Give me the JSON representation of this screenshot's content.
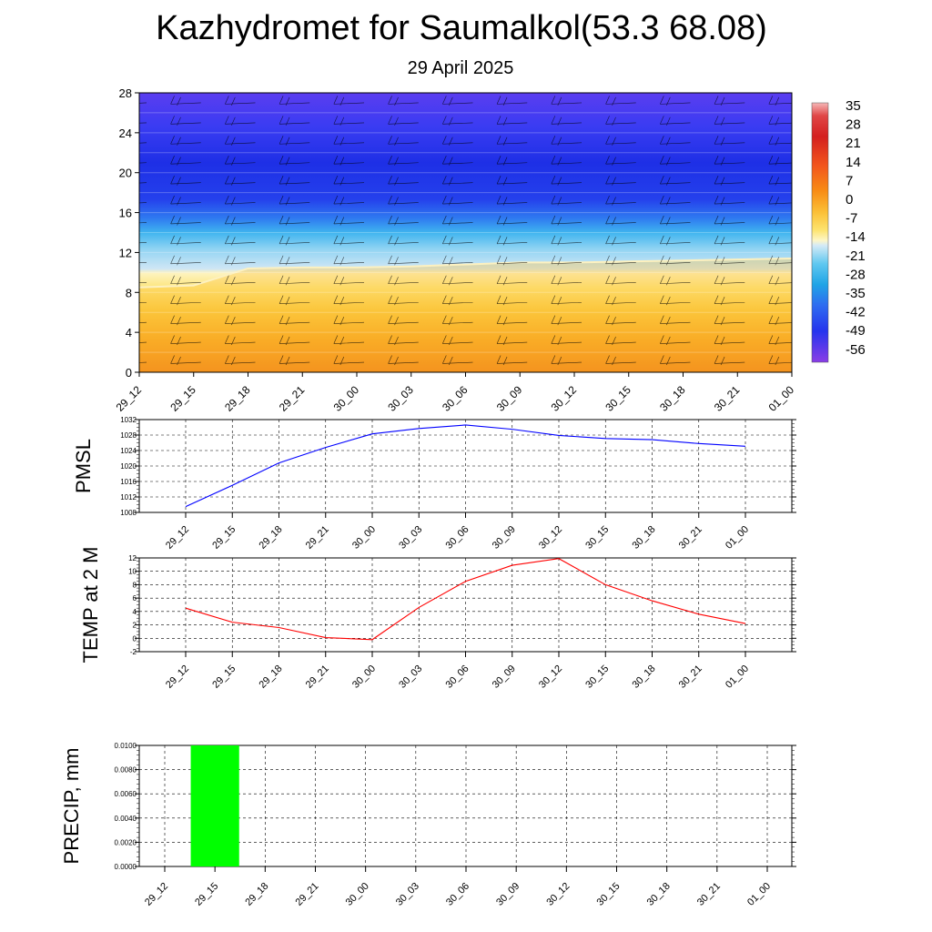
{
  "page": {
    "title": "Kazhydromet for Saumalkol(53.3 68.08)",
    "subtitle": "29 April 2025"
  },
  "chart_data": [
    {
      "type": "heatmap",
      "title": "",
      "x_categories": [
        "29_12",
        "29_15",
        "29_18",
        "29_21",
        "30_00",
        "30_03",
        "30_06",
        "30_09",
        "30_12",
        "30_15",
        "30_18",
        "30_21",
        "01_00"
      ],
      "yticks": [
        0,
        4,
        8,
        12,
        16,
        20,
        24,
        28
      ],
      "ylim": [
        0,
        28
      ],
      "colorbar": {
        "labels": [
          "35",
          "28",
          "21",
          "14",
          "7",
          "0",
          "-7",
          "-14",
          "-21",
          "-28",
          "-35",
          "-42",
          "-49",
          "-56"
        ],
        "colors": [
          "#f4a6a6",
          "#d92a2a",
          "#f05a1e",
          "#f88c14",
          "#fbc23a",
          "#fde873",
          "#fdf6c4",
          "#d4eaf6",
          "#5ccaf2",
          "#1fa4e6",
          "#2e6cf0",
          "#2a3ef2",
          "#3a2ef0",
          "#7e39e6"
        ]
      },
      "series": [
        {
          "name": "",
          "x": [
            "29_12",
            "29_15",
            "29_18",
            "29_21",
            "30_00",
            "30_03",
            "30_06",
            "30_09",
            "30_12",
            "30_15",
            "30_18",
            "30_21",
            "01_00"
          ],
          "freezing_level": [
            8.5,
            8.7,
            10.4,
            10.5,
            10.5,
            10.6,
            10.8,
            11.0,
            11.0,
            11.1,
            11.2,
            11.3,
            11.4
          ],
          "grid_row_levels": [
            0,
            2,
            4,
            6,
            8,
            10,
            12,
            14,
            16,
            18,
            20,
            22,
            24,
            26,
            28
          ],
          "grid_row_temperatures": [
            7,
            5,
            3,
            0,
            -4,
            -10,
            -20,
            -30,
            -38,
            -44,
            -48,
            -50,
            -50,
            -48,
            -46
          ]
        }
      ],
      "barbs": "present",
      "grid": false
    },
    {
      "type": "line",
      "ylabel": "PMSL",
      "xlabel": "",
      "categories": [
        "29_12",
        "29_15",
        "29_18",
        "29_21",
        "30_00",
        "30_03",
        "30_06",
        "30_09",
        "30_12",
        "30_15",
        "30_18",
        "30_21",
        "01_00"
      ],
      "yticks": [
        "1008",
        "1012",
        "1016",
        "1020",
        "1024",
        "1028",
        "1032"
      ],
      "ylim": [
        1008,
        1032
      ],
      "series": [
        {
          "name": "",
          "color": "#0000ff",
          "values": [
            1009.5,
            1015.0,
            1020.8,
            1024.8,
            1028.3,
            1029.7,
            1030.6,
            1029.5,
            1027.9,
            1027.1,
            1026.8,
            1025.8,
            1025.1
          ]
        }
      ],
      "grid": true
    },
    {
      "type": "line",
      "ylabel": "TEMP at 2 M",
      "xlabel": "",
      "categories": [
        "29_12",
        "29_15",
        "29_18",
        "29_21",
        "30_00",
        "30_03",
        "30_06",
        "30_09",
        "30_12",
        "30_15",
        "30_18",
        "30_21",
        "01_00"
      ],
      "yticks": [
        "-2",
        "0",
        "2",
        "4",
        "6",
        "8",
        "10",
        "12"
      ],
      "ylim": [
        -2,
        12
      ],
      "series": [
        {
          "name": "",
          "color": "#ff0000",
          "values": [
            4.5,
            2.4,
            1.6,
            0.1,
            -0.2,
            4.6,
            8.5,
            10.9,
            11.9,
            8.0,
            5.6,
            3.6,
            2.2
          ]
        }
      ],
      "grid": true
    },
    {
      "type": "bar",
      "ylabel": "PRECIP, mm",
      "xlabel": "",
      "categories": [
        "29_12",
        "29_15",
        "29_18",
        "29_21",
        "30_00",
        "30_03",
        "30_06",
        "30_09",
        "30_12",
        "30_15",
        "30_18",
        "30_21",
        "01_00"
      ],
      "yticks": [
        "0.0000",
        "0.0020",
        "0.0040",
        "0.0060",
        "0.0080",
        "0.0100"
      ],
      "ylim": [
        0,
        0.01
      ],
      "series": [
        {
          "name": "",
          "color": "#00ff00",
          "values": [
            0,
            0.01,
            0,
            0,
            0,
            0,
            0,
            0,
            0,
            0,
            0,
            0,
            0
          ]
        }
      ],
      "grid": true
    }
  ]
}
